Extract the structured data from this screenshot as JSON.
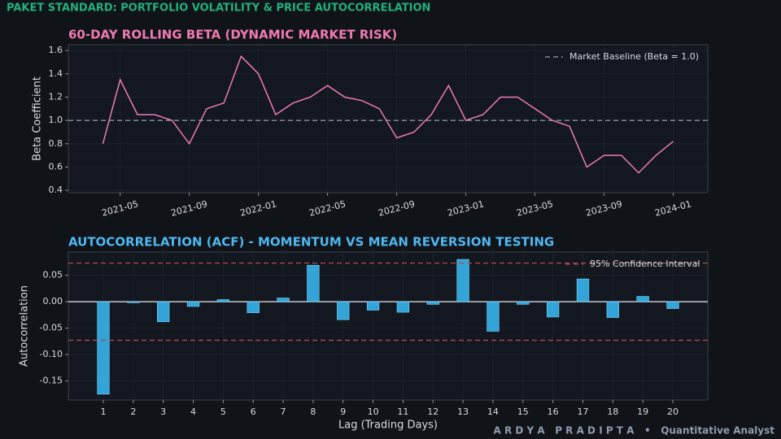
{
  "header": {
    "title": "PAKET STANDARD: PORTFOLIO VOLATILITY & PRICE AUTOCORRELATION"
  },
  "chart_data": [
    {
      "type": "line",
      "title": "60-DAY ROLLING BETA (DYNAMIC MARKET RISK)",
      "ylabel": "Beta Coefficient",
      "x": [
        "2021-04",
        "2021-05",
        "2021-06",
        "2021-07",
        "2021-08",
        "2021-09",
        "2021-10",
        "2021-11",
        "2021-12",
        "2022-01",
        "2022-02",
        "2022-03",
        "2022-04",
        "2022-05",
        "2022-06",
        "2022-07",
        "2022-08",
        "2022-09",
        "2022-10",
        "2022-11",
        "2022-12",
        "2023-01",
        "2023-02",
        "2023-03",
        "2023-04",
        "2023-05",
        "2023-06",
        "2023-07",
        "2023-08",
        "2023-09",
        "2023-10",
        "2023-11",
        "2023-12",
        "2024-01"
      ],
      "values": [
        0.8,
        1.35,
        1.05,
        1.05,
        1.0,
        0.8,
        1.1,
        1.15,
        1.55,
        1.4,
        1.05,
        1.15,
        1.2,
        1.3,
        1.2,
        1.17,
        1.1,
        0.85,
        0.9,
        1.05,
        1.3,
        1.0,
        1.05,
        1.2,
        1.2,
        1.1,
        1.0,
        0.95,
        0.6,
        0.7,
        0.7,
        0.55,
        0.7,
        0.82
      ],
      "color": "#f07ab4",
      "xlim": [
        "2021-02",
        "2024-03"
      ],
      "xticks": [
        "2021-05",
        "2021-09",
        "2022-01",
        "2022-05",
        "2022-09",
        "2023-01",
        "2023-05",
        "2023-09",
        "2024-01"
      ],
      "ylim": [
        0.38,
        1.65
      ],
      "yticks": [
        0.4,
        0.6,
        0.8,
        {
          "value": 1.0,
          "label": "1.0"
        },
        1.2,
        1.4,
        1.6
      ],
      "grid": true,
      "reference_lines": [
        {
          "value": 1.0,
          "label": "Market Baseline (Beta = 1.0)",
          "color": "#9aa0a6"
        }
      ],
      "legend": "upper right"
    },
    {
      "type": "bar",
      "title": "AUTOCORRELATION (ACF) - MOMENTUM VS MEAN REVERSION TESTING",
      "xlabel": "Lag (Trading Days)",
      "ylabel": "Autocorrelation",
      "categories": [
        "1",
        "2",
        "3",
        "4",
        "5",
        "6",
        "7",
        "8",
        "9",
        "10",
        "11",
        "12",
        "13",
        "14",
        "15",
        "16",
        "17",
        "18",
        "19",
        "20"
      ],
      "values": [
        -0.175,
        -0.002,
        -0.038,
        -0.009,
        0.004,
        -0.021,
        0.007,
        0.069,
        -0.034,
        -0.016,
        -0.02,
        -0.005,
        0.08,
        -0.056,
        -0.005,
        -0.029,
        0.043,
        -0.03,
        0.01,
        -0.013
      ],
      "color": "#38bdf8",
      "ylim": [
        -0.186,
        0.094
      ],
      "yticks": [
        {
          "value": -0.15,
          "label": "-0.15"
        },
        {
          "value": -0.1,
          "label": "-0.10"
        },
        -0.05,
        {
          "value": 0,
          "label": "0.00"
        },
        0.05
      ],
      "grid": true,
      "reference_lines": [
        {
          "value": 0.073,
          "label": "95% Confidence Interval",
          "color": "#b04a4a"
        },
        {
          "value": -0.073,
          "color": "#b04a4a"
        }
      ],
      "legend": "upper right"
    }
  ],
  "footer": {
    "text": "A R D Y A   P R A D I P T A   •   Quantitative Analyst"
  }
}
